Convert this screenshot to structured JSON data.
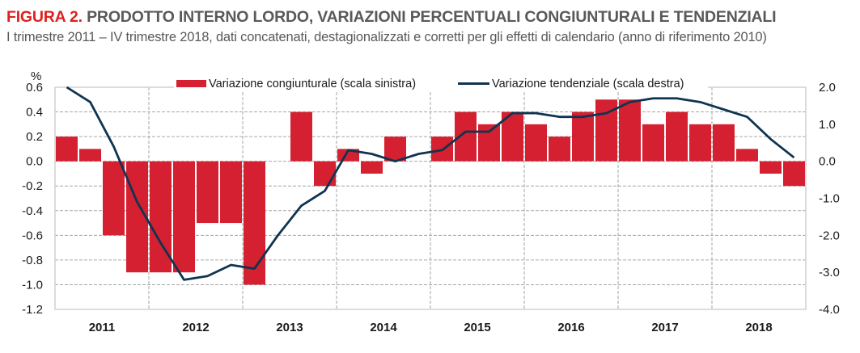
{
  "header": {
    "figure_label": "FIGURA 2.",
    "title": "PRODOTTO INTERNO LORDO, VARIAZIONI PERCENTUALI CONGIUNTURALI E TENDENZIALI",
    "subtitle": "I trimestre 2011 – IV trimestre 2018, dati concatenati, destagionalizzati e corretti per gli effetti di calendario (anno di riferimento 2010)"
  },
  "colors": {
    "title_accent": "#e02020",
    "bar": "#d42030",
    "line": "#0f3450",
    "grid": "#a6a6a6",
    "frame": "#d0d0d0"
  },
  "chart_data": {
    "type": "bar",
    "combo": "bar+line",
    "title": "PRODOTTO INTERNO LORDO, VARIAZIONI PERCENTUALI CONGIUNTURALI E TENDENZIALI",
    "ylabel": "%",
    "ylim": [
      -1.2,
      0.6
    ],
    "y_ticks": [
      "0.6",
      "0.4",
      "0.2",
      "0.0",
      "-0.2",
      "-0.4",
      "-0.6",
      "-0.8",
      "-1.0",
      "-1.2"
    ],
    "y2lim": [
      -4.0,
      2.0
    ],
    "y2_ticks": [
      "2.0",
      "1.0",
      "0.0",
      "-1.0",
      "-2.0",
      "-3.0",
      "-4.0"
    ],
    "year_labels": [
      "2011",
      "2012",
      "2013",
      "2014",
      "2015",
      "2016",
      "2017",
      "2018"
    ],
    "quarters_per_year": 4,
    "grid": true,
    "legend_position": "top",
    "series": [
      {
        "name": "Variazione congiunturale (scala sinistra)",
        "type": "bar",
        "axis": "left",
        "values": [
          0.2,
          0.1,
          -0.6,
          -0.9,
          -0.9,
          -0.9,
          -0.5,
          -0.5,
          -1.0,
          0.0,
          0.4,
          -0.2,
          0.1,
          -0.1,
          0.2,
          0.0,
          0.2,
          0.4,
          0.3,
          0.4,
          0.3,
          0.2,
          0.4,
          0.5,
          0.5,
          0.3,
          0.4,
          0.3,
          0.3,
          0.1,
          -0.1,
          -0.2
        ]
      },
      {
        "name": "Variazione tendenziale (scala destra)",
        "type": "line",
        "axis": "right",
        "values": [
          2.0,
          1.6,
          0.4,
          -1.1,
          -2.2,
          -3.2,
          -3.1,
          -2.8,
          -2.9,
          -2.0,
          -1.2,
          -0.8,
          0.3,
          0.2,
          0.0,
          0.2,
          0.3,
          0.8,
          0.8,
          1.3,
          1.3,
          1.2,
          1.2,
          1.3,
          1.6,
          1.7,
          1.7,
          1.6,
          1.4,
          1.2,
          0.6,
          0.1
        ]
      }
    ]
  }
}
